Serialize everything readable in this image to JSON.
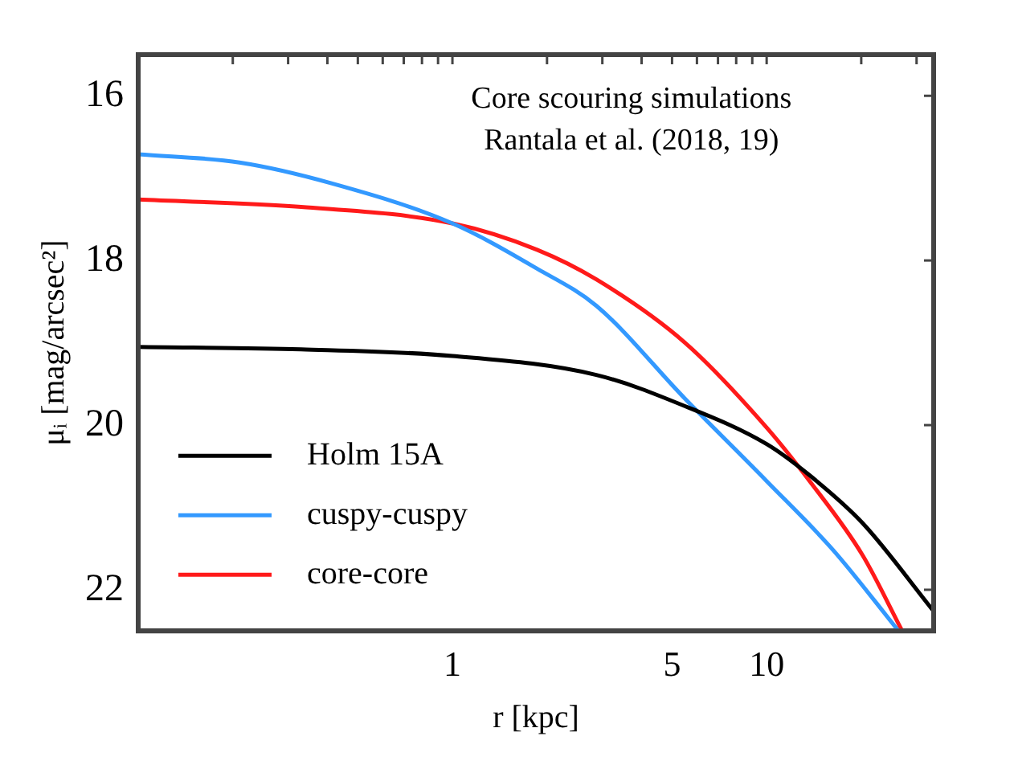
{
  "chart_data": {
    "type": "line",
    "xlabel": "r [kpc]",
    "ylabel": "μᵢ [mag/arcsec²]",
    "annotations": [
      "Core scouring simulations",
      "Rantala et al. (2018, 19)"
    ],
    "log": "x",
    "grid": false,
    "legend": "bottom left",
    "marker": "none",
    "line_style": "solid",
    "xlim": [
      0.1,
      34
    ],
    "ylim": [
      22.5,
      15.5
    ],
    "xticks": [
      {
        "value": 0.2,
        "label": null
      },
      {
        "value": 0.3,
        "label": null
      },
      {
        "value": 0.4,
        "label": null
      },
      {
        "value": 0.5,
        "label": null
      },
      {
        "value": 0.6,
        "label": null
      },
      {
        "value": 0.7,
        "label": null
      },
      {
        "value": 0.8,
        "label": null
      },
      {
        "value": 0.9,
        "label": null
      },
      1,
      {
        "value": 2,
        "label": null
      },
      {
        "value": 3,
        "label": null
      },
      {
        "value": 4,
        "label": null
      },
      5,
      {
        "value": 6,
        "label": null
      },
      {
        "value": 7,
        "label": null
      },
      {
        "value": 8,
        "label": null
      },
      {
        "value": 9,
        "label": null
      },
      10,
      {
        "value": 20,
        "label": null
      },
      {
        "value": 30,
        "label": null
      }
    ],
    "yticks": [
      16,
      18,
      20,
      22
    ],
    "series": [
      {
        "name": "Holm 15A",
        "color": "#000000",
        "x": [
          0.1,
          0.33,
          1,
          2.87,
          5.5,
          10,
          13.7,
          20.2,
          34
        ],
        "values": [
          19.05,
          19.08,
          19.16,
          19.39,
          19.77,
          20.23,
          20.61,
          21.19,
          22.26
        ]
      },
      {
        "name": "cuspy-cuspy",
        "color": "#3399ff",
        "x": [
          0.1,
          0.21,
          0.41,
          1,
          1.86,
          2.87,
          5.5,
          10,
          16.3,
          26.3
        ],
        "values": [
          16.71,
          16.81,
          17.06,
          17.55,
          18.1,
          18.55,
          19.68,
          20.68,
          21.52,
          22.5
        ]
      },
      {
        "name": "core-core",
        "color": "#ff1a1a",
        "x": [
          0.1,
          0.33,
          1,
          1.86,
          2.87,
          5.5,
          10,
          13.7,
          20.2,
          27
        ],
        "values": [
          17.26,
          17.35,
          17.55,
          17.87,
          18.23,
          19.0,
          20.03,
          20.68,
          21.58,
          22.5
        ]
      }
    ]
  }
}
